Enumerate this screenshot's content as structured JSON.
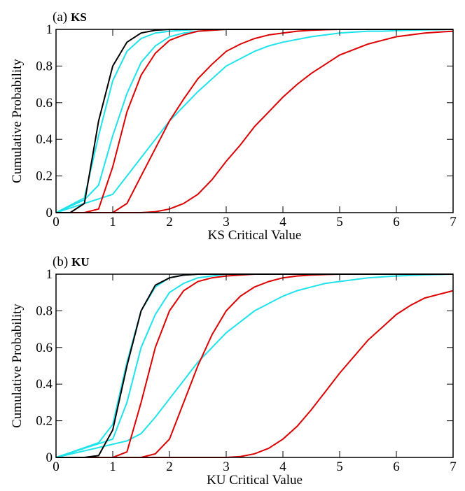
{
  "chart_data": [
    {
      "type": "line",
      "panel_label": "(a)",
      "title": "KS",
      "xlabel": "KS Critical Value",
      "ylabel": "Cumulative Probability",
      "x": [
        0,
        0.25,
        0.5,
        0.75,
        1,
        1.25,
        1.5,
        1.75,
        2,
        2.25,
        2.5,
        2.75,
        3,
        3.25,
        3.5,
        3.75,
        4,
        4.25,
        4.5,
        4.75,
        5,
        5.25,
        5.5,
        5.75,
        6,
        6.25,
        6.5,
        6.75,
        7
      ],
      "xlim": [
        0,
        7
      ],
      "ylim": [
        0,
        1
      ],
      "xticks": [
        0,
        1,
        2,
        3,
        4,
        5,
        6,
        7
      ],
      "yticks": [
        0,
        0.2,
        0.4,
        0.6,
        0.8,
        1
      ],
      "series": [
        {
          "color": "#1fe3eb",
          "values": [
            0,
            0.04,
            0.08,
            0.42,
            0.72,
            0.88,
            0.95,
            0.98,
            0.99,
            0.995,
            1,
            1,
            1,
            1,
            1,
            1,
            1,
            1,
            1,
            1,
            1,
            1,
            1,
            1,
            1,
            1,
            1,
            1,
            1
          ]
        },
        {
          "color": "#1fe3eb",
          "values": [
            0,
            0.035,
            0.07,
            0.15,
            0.42,
            0.65,
            0.82,
            0.91,
            0.96,
            0.98,
            0.99,
            0.995,
            1,
            1,
            1,
            1,
            1,
            1,
            1,
            1,
            1,
            1,
            1,
            1,
            1,
            1,
            1,
            1,
            1
          ]
        },
        {
          "color": "#1fe3eb",
          "values": [
            0,
            0.025,
            0.05,
            0.075,
            0.1,
            0.2,
            0.3,
            0.4,
            0.5,
            0.58,
            0.66,
            0.73,
            0.8,
            0.84,
            0.88,
            0.91,
            0.93,
            0.945,
            0.96,
            0.97,
            0.98,
            0.985,
            0.99,
            0.99,
            0.993,
            0.995,
            0.997,
            0.998,
            1
          ]
        },
        {
          "color": "#dd0000",
          "values": [
            0,
            0,
            0,
            0.02,
            0.25,
            0.55,
            0.75,
            0.87,
            0.94,
            0.97,
            0.99,
            0.995,
            1,
            1,
            1,
            1,
            1,
            1,
            1,
            1,
            1,
            1,
            1,
            1,
            1,
            1,
            1,
            1,
            1
          ]
        },
        {
          "color": "#dd0000",
          "values": [
            0,
            0,
            0,
            0,
            0,
            0.05,
            0.2,
            0.35,
            0.5,
            0.62,
            0.73,
            0.81,
            0.88,
            0.92,
            0.95,
            0.97,
            0.98,
            0.99,
            0.995,
            0.998,
            1,
            1,
            1,
            1,
            1,
            1,
            1,
            1,
            1
          ]
        },
        {
          "color": "#dd0000",
          "values": [
            0,
            0,
            0,
            0,
            0,
            0,
            0,
            0.005,
            0.02,
            0.05,
            0.1,
            0.18,
            0.28,
            0.37,
            0.47,
            0.55,
            0.63,
            0.7,
            0.76,
            0.81,
            0.86,
            0.89,
            0.92,
            0.94,
            0.96,
            0.97,
            0.98,
            0.985,
            0.99
          ]
        },
        {
          "color": "#000000",
          "values": [
            0,
            0,
            0.05,
            0.5,
            0.8,
            0.93,
            0.98,
            0.995,
            1,
            1,
            1,
            1,
            1,
            1,
            1,
            1,
            1,
            1,
            1,
            1,
            1,
            1,
            1,
            1,
            1,
            1,
            1,
            1,
            1
          ]
        }
      ]
    },
    {
      "type": "line",
      "panel_label": "(b)",
      "title": "KU",
      "xlabel": "KU Critical Value",
      "ylabel": "Cumulative Probability",
      "x": [
        0,
        0.25,
        0.5,
        0.75,
        1,
        1.25,
        1.5,
        1.75,
        2,
        2.25,
        2.5,
        2.75,
        3,
        3.25,
        3.5,
        3.75,
        4,
        4.25,
        4.5,
        4.75,
        5,
        5.25,
        5.5,
        5.75,
        6,
        6.25,
        6.5,
        6.75,
        7
      ],
      "xlim": [
        0,
        7
      ],
      "ylim": [
        0,
        1
      ],
      "xticks": [
        0,
        1,
        2,
        3,
        4,
        5,
        6,
        7
      ],
      "yticks": [
        0,
        0.2,
        0.4,
        0.6,
        0.8,
        1
      ],
      "series": [
        {
          "color": "#1fe3eb",
          "values": [
            0,
            0.026,
            0.053,
            0.08,
            0.18,
            0.52,
            0.8,
            0.93,
            0.98,
            0.995,
            1,
            1,
            1,
            1,
            1,
            1,
            1,
            1,
            1,
            1,
            1,
            1,
            1,
            1,
            1,
            1,
            1,
            1,
            1
          ]
        },
        {
          "color": "#1fe3eb",
          "values": [
            0,
            0.025,
            0.05,
            0.075,
            0.1,
            0.3,
            0.6,
            0.78,
            0.9,
            0.95,
            0.98,
            0.99,
            1,
            1,
            1,
            1,
            1,
            1,
            1,
            1,
            1,
            1,
            1,
            1,
            1,
            1,
            1,
            1,
            1
          ]
        },
        {
          "color": "#1fe3eb",
          "values": [
            0,
            0.018,
            0.036,
            0.054,
            0.072,
            0.09,
            0.13,
            0.22,
            0.32,
            0.42,
            0.52,
            0.6,
            0.68,
            0.74,
            0.8,
            0.84,
            0.88,
            0.91,
            0.93,
            0.95,
            0.96,
            0.97,
            0.98,
            0.985,
            0.99,
            0.993,
            0.996,
            0.998,
            1
          ]
        },
        {
          "color": "#dd0000",
          "values": [
            0,
            0,
            0,
            0,
            0,
            0.03,
            0.3,
            0.6,
            0.8,
            0.91,
            0.96,
            0.98,
            0.99,
            0.995,
            1,
            1,
            1,
            1,
            1,
            1,
            1,
            1,
            1,
            1,
            1,
            1,
            1,
            1,
            1
          ]
        },
        {
          "color": "#dd0000",
          "values": [
            0,
            0,
            0,
            0,
            0,
            0,
            0,
            0.02,
            0.1,
            0.3,
            0.5,
            0.67,
            0.8,
            0.88,
            0.93,
            0.96,
            0.98,
            0.99,
            0.995,
            0.998,
            1,
            1,
            1,
            1,
            1,
            1,
            1,
            1,
            1
          ]
        },
        {
          "color": "#dd0000",
          "values": [
            0,
            0,
            0,
            0,
            0,
            0,
            0,
            0,
            0,
            0,
            0,
            0,
            0,
            0.005,
            0.02,
            0.05,
            0.1,
            0.17,
            0.26,
            0.36,
            0.46,
            0.55,
            0.64,
            0.71,
            0.78,
            0.83,
            0.87,
            0.89,
            0.91
          ]
        },
        {
          "color": "#000000",
          "values": [
            0,
            0,
            0,
            0.01,
            0.15,
            0.5,
            0.8,
            0.94,
            0.98,
            0.995,
            1,
            1,
            1,
            1,
            1,
            1,
            1,
            1,
            1,
            1,
            1,
            1,
            1,
            1,
            1,
            1,
            1,
            1,
            1
          ]
        }
      ]
    }
  ]
}
